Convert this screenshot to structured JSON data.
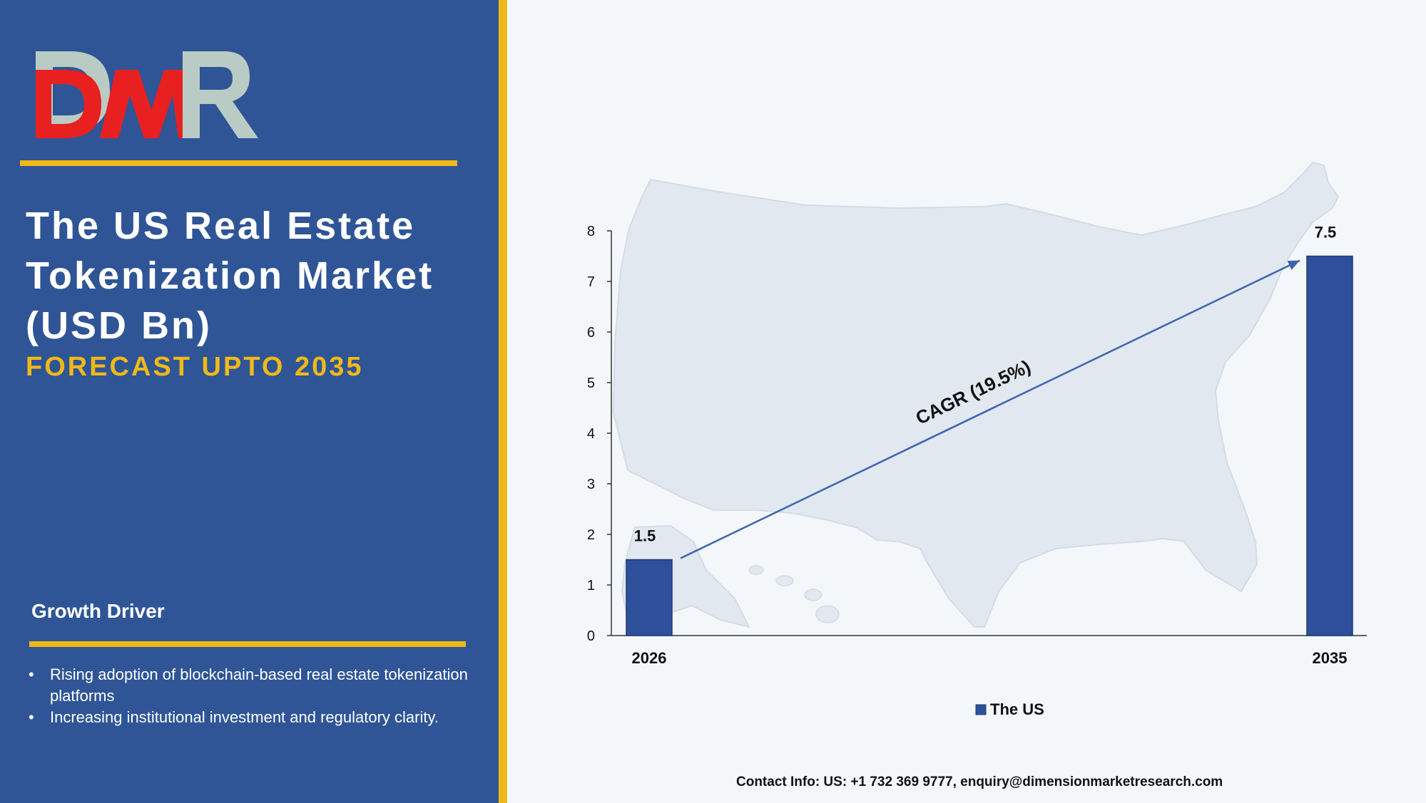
{
  "brand": {
    "logo_text": "DMR",
    "colors": {
      "logo_red": "#e8201f",
      "logo_gray": "#b9cbc4"
    }
  },
  "left_panel": {
    "title": "The US Real Estate Tokenization Market (USD Bn)",
    "subtitle": "FORECAST UPTO 2035",
    "growth_heading": "Growth Driver",
    "drivers": [
      "Rising adoption of blockchain-based real estate tokenization platforms",
      "Increasing institutional investment and regulatory clarity."
    ]
  },
  "colors": {
    "panel_bg": "#2f5597",
    "accent_yellow": "#f0b918",
    "bar_fill": "#2e4f9a",
    "map_fill": "#e1e8f0"
  },
  "chart_data": {
    "type": "bar",
    "categories": [
      "2026",
      "2035"
    ],
    "series": [
      {
        "name": "The US",
        "values": [
          1.5,
          7.5
        ]
      }
    ],
    "data_labels": [
      "1.5",
      "7.5"
    ],
    "ylim": [
      0,
      8
    ],
    "yticks": [
      "0",
      "1",
      "2",
      "3",
      "4",
      "5",
      "6",
      "7",
      "8"
    ],
    "grid": false,
    "legend_position": "bottom",
    "annotation": "CAGR (19.5%)",
    "background_image": "us-map"
  },
  "footer": {
    "contact": "Contact Info: US: +1 732 369 9777, enquiry@dimensionmarketresearch.com"
  }
}
